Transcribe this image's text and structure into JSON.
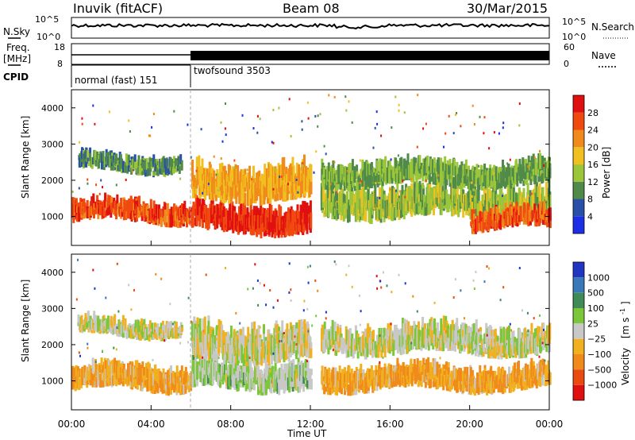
{
  "header": {
    "station": "Inuvik (fitACF)",
    "beam": "Beam 08",
    "date": "30/Mar/2015"
  },
  "side_labels": {
    "nsky": "N.Sky",
    "freq": "Freq.",
    "mhz": "[MHz]",
    "cpid": "CPID",
    "nsearch": "N.Search",
    "nave": "Nave"
  },
  "noise_panel": {
    "left_ticks": [
      "10^5",
      "10^0"
    ],
    "right_ticks": [
      "10^5",
      "10^0"
    ]
  },
  "freq_panel": {
    "left_ticks": [
      "18",
      "8"
    ],
    "right_ticks": [
      "60",
      "0"
    ],
    "freq_mhz": 10.5
  },
  "cpid_panel": {
    "modes": [
      {
        "label": "normal (fast) 151",
        "start_h": 0,
        "end_h": 6
      },
      {
        "label": "twofsound 3503",
        "start_h": 6,
        "end_h": 24
      }
    ]
  },
  "power_panel": {
    "ylabel": "Slant Range [km]",
    "yticks": [
      "1000",
      "2000",
      "3000",
      "4000"
    ],
    "colorbar_label": "Power [dB]",
    "colorbar_ticks": [
      "4",
      "8",
      "12",
      "16",
      "20",
      "24",
      "28"
    ],
    "colors": [
      "#1c2fe6",
      "#2a4fa8",
      "#4f8a4a",
      "#9cc63a",
      "#f0c020",
      "#f08a1a",
      "#f04a10",
      "#e01010"
    ]
  },
  "velocity_panel": {
    "ylabel": "Slant Range [km]",
    "yticks": [
      "1000",
      "2000",
      "3000",
      "4000"
    ],
    "colorbar_label": "Velocity",
    "colorbar_unit": "[m s",
    "colorbar_unit_sup": "-1",
    "colorbar_unit_end": "]",
    "colorbar_ticks": [
      "1000",
      "500",
      "100",
      "25",
      "−25",
      "−100",
      "−500",
      "−1000"
    ],
    "colors": [
      "#2035c0",
      "#3a78b8",
      "#3f8a55",
      "#7cc63a",
      "#c8c8c8",
      "#f0b020",
      "#f08a1a",
      "#e84a10",
      "#e01010"
    ]
  },
  "x_axis": {
    "ticks": [
      "00:00",
      "04:00",
      "08:00",
      "12:00",
      "16:00",
      "20:00",
      "00:00"
    ],
    "label": "Time UT"
  },
  "chart_data": {
    "type": "heatmap",
    "title": "Inuvik (fitACF) Beam 08 30/Mar/2015",
    "xlabel": "Time UT",
    "ylabel": "Slant Range [km]",
    "xlim_hours": [
      0,
      24
    ],
    "ylim_km": [
      200,
      4500
    ],
    "panels": [
      {
        "name": "Power [dB]",
        "color_range": [
          0,
          32
        ],
        "scatter_bands": [
          {
            "x_start_h": 0,
            "x_end_h": 6,
            "range_km": [
              800,
              1400
            ],
            "value": 26
          },
          {
            "x_start_h": 0.3,
            "x_end_h": 5.5,
            "range_km": [
              2200,
              2700
            ],
            "value": 10
          },
          {
            "x_start_h": 6,
            "x_end_h": 12,
            "range_km": [
              500,
              1300
            ],
            "value": 28
          },
          {
            "x_start_h": 6,
            "x_end_h": 12,
            "range_km": [
              1400,
              2400
            ],
            "value": 20
          },
          {
            "x_start_h": 12.5,
            "x_end_h": 24,
            "range_km": [
              900,
              1800
            ],
            "value": 14
          },
          {
            "x_start_h": 12.5,
            "x_end_h": 24,
            "range_km": [
              1800,
              2500
            ],
            "value": 12
          },
          {
            "x_start_h": 20,
            "x_end_h": 24,
            "range_km": [
              600,
              1200
            ],
            "value": 26
          }
        ]
      },
      {
        "name": "Velocity [m s-1]",
        "color_range": [
          -1000,
          1000
        ],
        "scatter_bands": [
          {
            "x_start_h": 0,
            "x_end_h": 6,
            "range_km": [
              700,
              1400
            ],
            "value": -300
          },
          {
            "x_start_h": 0.3,
            "x_end_h": 5.5,
            "range_km": [
              2200,
              2700
            ],
            "value": 0
          },
          {
            "x_start_h": 6,
            "x_end_h": 12,
            "range_km": [
              700,
              1500
            ],
            "value": 120
          },
          {
            "x_start_h": 6,
            "x_end_h": 12,
            "range_km": [
              1500,
              2500
            ],
            "value": 0
          },
          {
            "x_start_h": 12.5,
            "x_end_h": 24,
            "range_km": [
              1700,
              2500
            ],
            "value": 0
          },
          {
            "x_start_h": 12.5,
            "x_end_h": 24,
            "range_km": [
              700,
              1400
            ],
            "value": -300
          }
        ]
      }
    ]
  }
}
